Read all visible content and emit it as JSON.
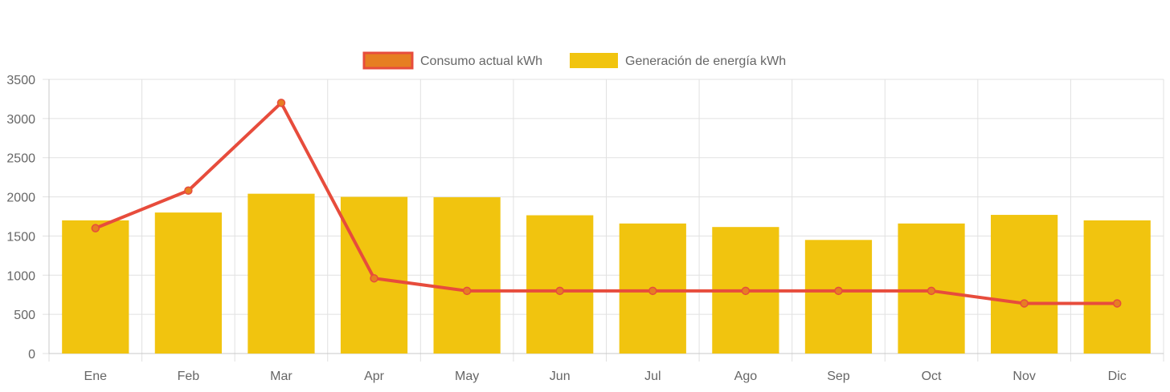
{
  "chart_data": {
    "type": "bar",
    "categories": [
      "Ene",
      "Feb",
      "Mar",
      "Apr",
      "May",
      "Jun",
      "Jul",
      "Ago",
      "Sep",
      "Oct",
      "Nov",
      "Dic"
    ],
    "series": [
      {
        "name": "Consumo actual kWh",
        "type": "line",
        "values": [
          1600,
          2080,
          3200,
          960,
          800,
          800,
          800,
          800,
          800,
          800,
          640,
          640
        ],
        "color": "#e74c3c",
        "legend_fill": "#e67e22"
      },
      {
        "name": "Generación de energía kWh",
        "type": "bar",
        "values": [
          1700,
          1800,
          2040,
          2000,
          1995,
          1765,
          1660,
          1615,
          1450,
          1660,
          1770,
          1700
        ],
        "color": "#f1c40f"
      }
    ],
    "yticks": [
      0,
      500,
      1000,
      1500,
      2000,
      2500,
      3000,
      3500
    ],
    "ylim": [
      0,
      3500
    ],
    "grid": true,
    "legend_position": "top-center",
    "title": "",
    "xlabel": "",
    "ylabel": ""
  }
}
